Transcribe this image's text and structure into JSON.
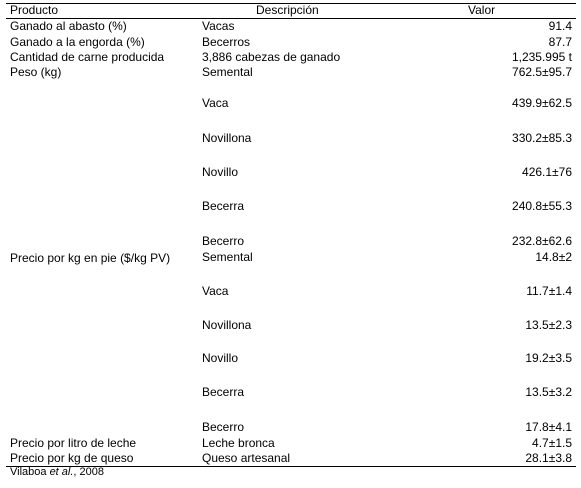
{
  "header": {
    "col_producto": "Producto",
    "col_descripcion": "Descripción",
    "col_valor": "Valor"
  },
  "rows": [
    {
      "producto": "Ganado al abasto (%)",
      "descripcion": "Vacas",
      "valor": "91.4"
    },
    {
      "producto": "Ganado a la engorda (%)",
      "descripcion": "Becerros",
      "valor": "87.7"
    },
    {
      "producto": "Cantidad de carne producida",
      "descripcion": "3,886 cabezas de ganado",
      "valor": "1,235.995 t"
    },
    {
      "producto": "Peso (kg)",
      "descripcion": "Semental",
      "valor": "762.5±95.7"
    },
    {
      "producto": "",
      "descripcion": "Vaca",
      "valor": "439.9±62.5"
    },
    {
      "producto": "",
      "descripcion": "Novillona",
      "valor": "330.2±85.3"
    },
    {
      "producto": "",
      "descripcion": "Novillo",
      "valor": "426.1±76"
    },
    {
      "producto": "",
      "descripcion": "Becerra",
      "valor": "240.8±55.3"
    },
    {
      "producto": "",
      "descripcion": "Becerro",
      "valor": "232.8±62.6"
    },
    {
      "producto": "Precio por kg en pie ($/kg PV)",
      "descripcion": "Semental",
      "valor": "14.8±2"
    },
    {
      "producto": "",
      "descripcion": "Vaca",
      "valor": "11.7±1.4"
    },
    {
      "producto": "",
      "descripcion": "Novillona",
      "valor": "13.5±2.3"
    },
    {
      "producto": "",
      "descripcion": "Novillo",
      "valor": "19.2±3.5"
    },
    {
      "producto": "",
      "descripcion": "Becerra",
      "valor": "13.5±3.2"
    },
    {
      "producto": "",
      "descripcion": "Becerro",
      "valor": "17.8±4.1"
    },
    {
      "producto": "Precio por litro de leche",
      "descripcion": "Leche bronca",
      "valor": "4.7±1.5"
    },
    {
      "producto": "Precio por kg de queso",
      "descripcion": "Queso artesanal",
      "valor": "28.1±3.8"
    }
  ],
  "source": {
    "author": "Vilaboa ",
    "etal": "et al.",
    "year": ", 2008"
  }
}
